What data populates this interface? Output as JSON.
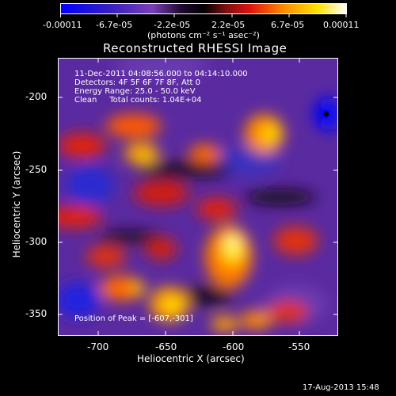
{
  "colorbar": {
    "ticks": [
      "-0.00011",
      "-6.7e-05",
      "-2.2e-05",
      "2.2e-05",
      "6.7e-05",
      "0.00011"
    ],
    "units": "(photons cm⁻² s⁻¹ asec⁻²)",
    "colors": [
      "#0000ff",
      "#3a1fb6",
      "#7a3fb8",
      "#000000",
      "#d01010",
      "#ff8a00",
      "#ffe200",
      "#ffffff"
    ]
  },
  "title": "Reconstructed RHESSI Image",
  "info": {
    "line1": "11-Dec-2011 04:08:56.000 to 04:14:10.000",
    "line2": "Detectors: 4F 5F 6F 7F 8F, Att 0",
    "line3": "Energy Range: 25.0 - 50.0 keV",
    "line4": "Clean     Total counts: 1.04E+04"
  },
  "peak": "Position of Peak = [-607,-301]",
  "axes": {
    "xlabel": "Heliocentric X (arcsec)",
    "ylabel": "Heliocentric Y (arcsec)",
    "xticks": [
      "-700",
      "-650",
      "-600",
      "-550"
    ],
    "yticks": [
      "-200",
      "-250",
      "-300",
      "-350"
    ]
  },
  "footer": "17-Aug-2013 15:48"
}
